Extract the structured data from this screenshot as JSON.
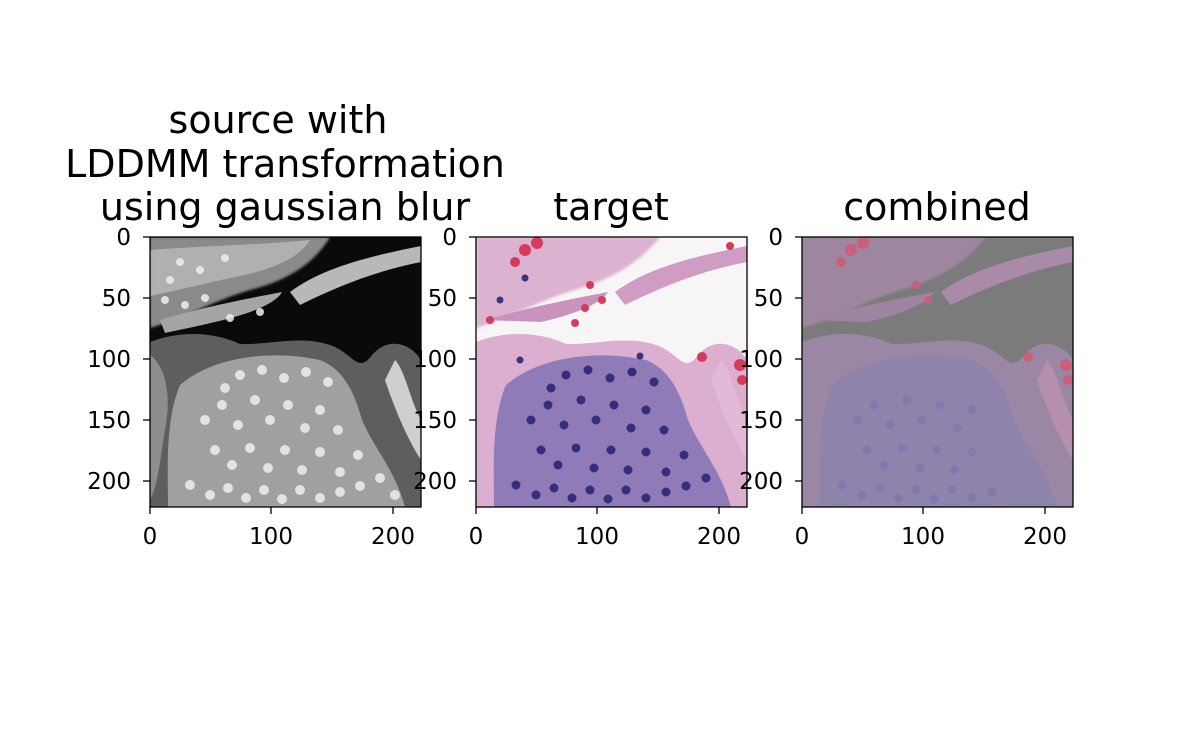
{
  "panels": [
    {
      "title_lines": [
        "source with",
        "LDDMM transformation",
        "using gaussian blur"
      ],
      "x_ticks": [
        "0",
        "100",
        "200"
      ],
      "y_ticks": [
        "0",
        "50",
        "100",
        "150",
        "200"
      ],
      "image": "grayscale-tissue-warped"
    },
    {
      "title_lines": [
        "target"
      ],
      "x_ticks": [
        "0",
        "100",
        "200"
      ],
      "y_ticks": [
        "0",
        "50",
        "100",
        "150",
        "200"
      ],
      "image": "he-stained-tissue"
    },
    {
      "title_lines": [
        "combined"
      ],
      "x_ticks": [
        "0",
        "100",
        "200"
      ],
      "y_ticks": [
        "0",
        "50",
        "100",
        "150",
        "200"
      ],
      "image": "overlay-tissue"
    }
  ],
  "colors": {
    "source_background": "#0a0a0a",
    "source_cells": "#e6e6e6",
    "target_background": "#f7f5f6",
    "target_stroma": "#d9a6c9",
    "target_nuclei": "#2b2677",
    "target_rbc": "#d63a5d",
    "combined_background": "#7c7b7c",
    "combined_tissue": "#9a7fa6",
    "combined_rbc": "#c95f7c"
  }
}
